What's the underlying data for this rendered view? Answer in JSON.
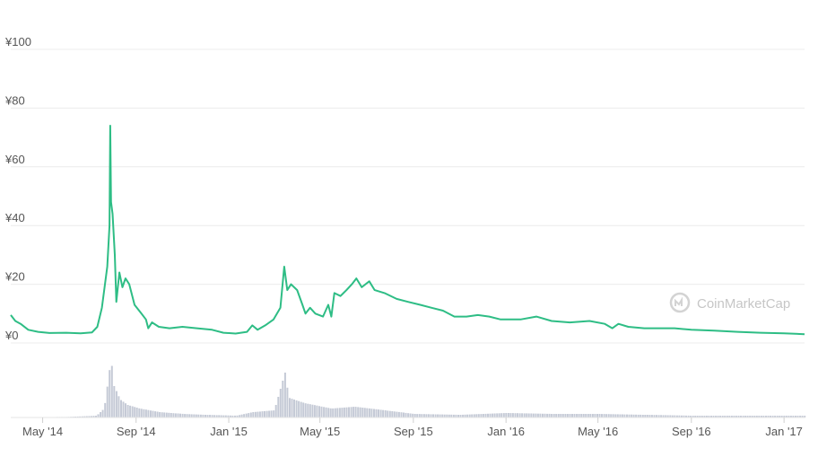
{
  "chart_data": {
    "type": "line",
    "title": "",
    "xlabel": "",
    "ylabel": "",
    "watermark": "CoinMarketCap",
    "ylim": [
      0,
      100
    ],
    "y_ticks": [
      "¥0",
      "¥20",
      "¥40",
      "¥60",
      "¥80",
      "¥100"
    ],
    "y_tick_values": [
      0,
      20,
      40,
      60,
      80,
      100
    ],
    "x_range": [
      "2014-03-20",
      "2017-01-28"
    ],
    "x_ticks": [
      {
        "label": "May '14",
        "date": "2014-05-01"
      },
      {
        "label": "Sep '14",
        "date": "2014-09-01"
      },
      {
        "label": "Jan '15",
        "date": "2015-01-01"
      },
      {
        "label": "May '15",
        "date": "2015-05-01"
      },
      {
        "label": "Sep '15",
        "date": "2015-09-01"
      },
      {
        "label": "Jan '16",
        "date": "2016-01-01"
      },
      {
        "label": "May '16",
        "date": "2016-05-01"
      },
      {
        "label": "Sep '16",
        "date": "2016-09-01"
      },
      {
        "label": "Jan '17",
        "date": "2017-01-01"
      }
    ],
    "grid": true,
    "colors": {
      "price": "#2ebd85",
      "volume": "#c5cad6",
      "grid": "#ececec",
      "watermark": "#c6c6c6"
    },
    "series": [
      {
        "kind": "price",
        "points": [
          [
            "2014-03-20",
            9.5
          ],
          [
            "2014-03-26",
            7.5
          ],
          [
            "2014-04-02",
            6.5
          ],
          [
            "2014-04-12",
            4.5
          ],
          [
            "2014-04-25",
            3.8
          ],
          [
            "2014-05-10",
            3.4
          ],
          [
            "2014-06-01",
            3.5
          ],
          [
            "2014-06-20",
            3.3
          ],
          [
            "2014-07-05",
            3.6
          ],
          [
            "2014-07-12",
            5.5
          ],
          [
            "2014-07-18",
            12
          ],
          [
            "2014-07-25",
            26
          ],
          [
            "2014-07-28",
            40
          ],
          [
            "2014-07-29",
            74
          ],
          [
            "2014-07-30",
            48
          ],
          [
            "2014-08-01",
            44
          ],
          [
            "2014-08-04",
            30
          ],
          [
            "2014-08-06",
            14
          ],
          [
            "2014-08-10",
            24
          ],
          [
            "2014-08-14",
            19
          ],
          [
            "2014-08-18",
            22
          ],
          [
            "2014-08-23",
            20
          ],
          [
            "2014-08-30",
            13
          ],
          [
            "2014-09-08",
            10
          ],
          [
            "2014-09-14",
            8
          ],
          [
            "2014-09-17",
            5
          ],
          [
            "2014-09-22",
            7
          ],
          [
            "2014-10-01",
            5.5
          ],
          [
            "2014-10-15",
            5
          ],
          [
            "2014-11-01",
            5.5
          ],
          [
            "2014-11-20",
            5
          ],
          [
            "2014-12-10",
            4.5
          ],
          [
            "2014-12-25",
            3.5
          ],
          [
            "2015-01-10",
            3.2
          ],
          [
            "2015-01-25",
            3.8
          ],
          [
            "2015-02-01",
            6
          ],
          [
            "2015-02-08",
            4.5
          ],
          [
            "2015-02-18",
            6
          ],
          [
            "2015-03-01",
            8
          ],
          [
            "2015-03-10",
            12
          ],
          [
            "2015-03-15",
            26
          ],
          [
            "2015-03-19",
            18
          ],
          [
            "2015-03-24",
            20
          ],
          [
            "2015-04-01",
            18
          ],
          [
            "2015-04-08",
            13
          ],
          [
            "2015-04-12",
            10
          ],
          [
            "2015-04-18",
            12
          ],
          [
            "2015-04-25",
            10
          ],
          [
            "2015-05-05",
            9
          ],
          [
            "2015-05-12",
            13
          ],
          [
            "2015-05-16",
            9
          ],
          [
            "2015-05-20",
            17
          ],
          [
            "2015-05-28",
            16
          ],
          [
            "2015-06-05",
            18
          ],
          [
            "2015-06-12",
            20
          ],
          [
            "2015-06-18",
            22
          ],
          [
            "2015-06-25",
            19
          ],
          [
            "2015-07-05",
            21
          ],
          [
            "2015-07-12",
            18
          ],
          [
            "2015-07-25",
            17
          ],
          [
            "2015-08-10",
            15
          ],
          [
            "2015-08-25",
            14
          ],
          [
            "2015-09-10",
            13
          ],
          [
            "2015-09-25",
            12
          ],
          [
            "2015-10-10",
            11
          ],
          [
            "2015-10-25",
            9
          ],
          [
            "2015-11-10",
            9
          ],
          [
            "2015-11-25",
            9.5
          ],
          [
            "2015-12-10",
            9
          ],
          [
            "2015-12-25",
            8
          ],
          [
            "2016-01-20",
            8
          ],
          [
            "2016-02-10",
            9
          ],
          [
            "2016-03-01",
            7.5
          ],
          [
            "2016-03-25",
            7
          ],
          [
            "2016-04-20",
            7.5
          ],
          [
            "2016-05-10",
            6.5
          ],
          [
            "2016-05-20",
            5
          ],
          [
            "2016-05-28",
            6.5
          ],
          [
            "2016-06-10",
            5.5
          ],
          [
            "2016-07-01",
            5
          ],
          [
            "2016-08-10",
            5
          ],
          [
            "2016-09-01",
            4.5
          ],
          [
            "2016-10-01",
            4.2
          ],
          [
            "2016-11-01",
            3.8
          ],
          [
            "2016-12-01",
            3.5
          ],
          [
            "2017-01-01",
            3.3
          ],
          [
            "2017-01-28",
            3.0
          ]
        ]
      },
      {
        "kind": "volume",
        "note_units": "relative",
        "points": [
          [
            "2014-03-20",
            0.5
          ],
          [
            "2014-05-01",
            0.5
          ],
          [
            "2014-06-01",
            0.6
          ],
          [
            "2014-07-10",
            2
          ],
          [
            "2014-07-20",
            10
          ],
          [
            "2014-07-29",
            65
          ],
          [
            "2014-08-02",
            35
          ],
          [
            "2014-08-10",
            20
          ],
          [
            "2014-08-20",
            14
          ],
          [
            "2014-09-05",
            10
          ],
          [
            "2014-10-01",
            6
          ],
          [
            "2014-11-01",
            4
          ],
          [
            "2014-12-01",
            3
          ],
          [
            "2015-01-10",
            2
          ],
          [
            "2015-02-01",
            6
          ],
          [
            "2015-03-01",
            8
          ],
          [
            "2015-03-15",
            50
          ],
          [
            "2015-03-20",
            22
          ],
          [
            "2015-04-10",
            16
          ],
          [
            "2015-05-15",
            10
          ],
          [
            "2015-06-15",
            12
          ],
          [
            "2015-07-15",
            9
          ],
          [
            "2015-09-01",
            4
          ],
          [
            "2015-11-01",
            3
          ],
          [
            "2016-01-01",
            5
          ],
          [
            "2016-03-01",
            4
          ],
          [
            "2016-05-01",
            4
          ],
          [
            "2016-07-01",
            3
          ],
          [
            "2016-09-01",
            2
          ],
          [
            "2016-11-01",
            2
          ],
          [
            "2017-01-28",
            2
          ]
        ]
      }
    ]
  }
}
